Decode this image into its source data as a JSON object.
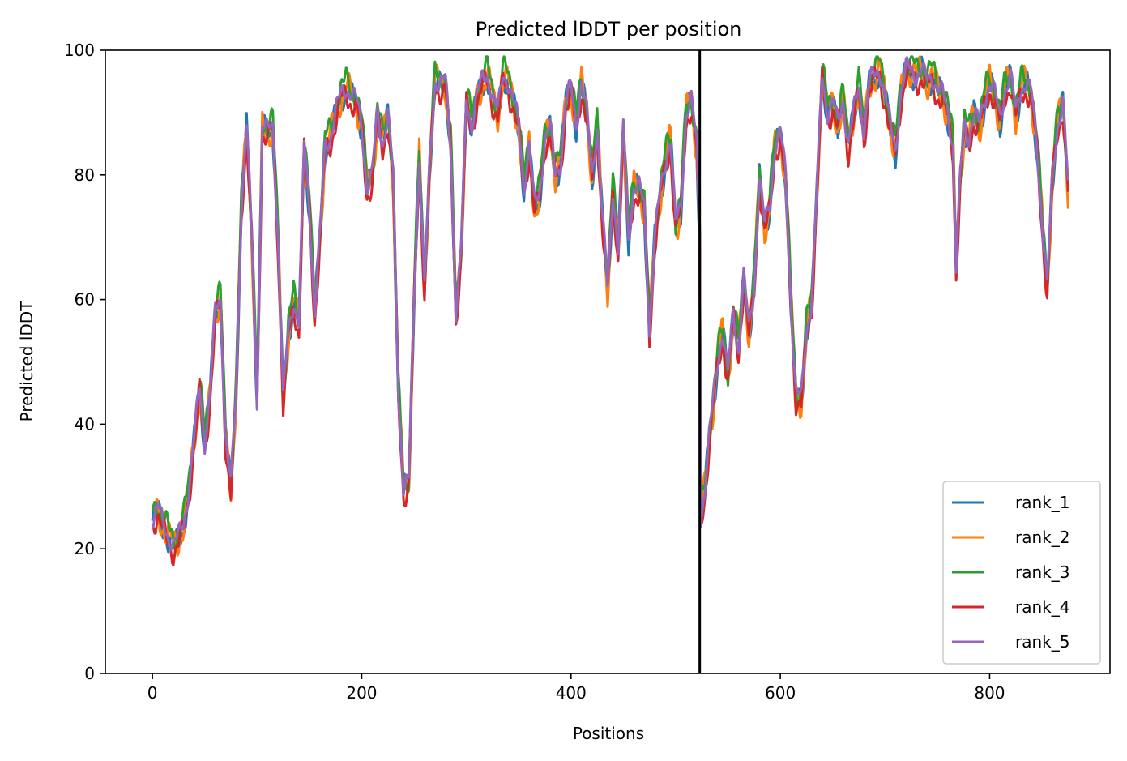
{
  "chart_data": {
    "type": "line",
    "title": "Predicted lDDT per position",
    "xlabel": "Positions",
    "ylabel": "Predicted lDDT",
    "xlim": [
      -45,
      915
    ],
    "ylim": [
      0,
      100
    ],
    "xticks": [
      0,
      200,
      400,
      600,
      800
    ],
    "yticks": [
      0,
      20,
      40,
      60,
      80,
      100
    ],
    "grid": false,
    "legend_position": "lower-right",
    "divider_x": 523,
    "x_max": 875,
    "colors": {
      "rank_1": "#1f77b4",
      "rank_2": "#ff7f0e",
      "rank_3": "#2ca02c",
      "rank_4": "#d62728",
      "rank_5": "#9467bd",
      "divider": "#000000"
    },
    "baseline_points": [
      [
        0,
        25
      ],
      [
        5,
        27
      ],
      [
        10,
        24
      ],
      [
        15,
        22
      ],
      [
        20,
        21
      ],
      [
        25,
        22
      ],
      [
        30,
        24
      ],
      [
        35,
        30
      ],
      [
        40,
        38
      ],
      [
        45,
        46
      ],
      [
        50,
        37
      ],
      [
        55,
        45
      ],
      [
        60,
        58
      ],
      [
        65,
        60
      ],
      [
        70,
        38
      ],
      [
        75,
        30
      ],
      [
        80,
        45
      ],
      [
        85,
        75
      ],
      [
        90,
        88
      ],
      [
        95,
        70
      ],
      [
        100,
        44
      ],
      [
        105,
        88
      ],
      [
        110,
        87
      ],
      [
        115,
        88
      ],
      [
        120,
        70
      ],
      [
        125,
        44
      ],
      [
        130,
        55
      ],
      [
        135,
        60
      ],
      [
        140,
        56
      ],
      [
        145,
        85
      ],
      [
        150,
        75
      ],
      [
        155,
        58
      ],
      [
        160,
        70
      ],
      [
        165,
        85
      ],
      [
        170,
        86
      ],
      [
        175,
        90
      ],
      [
        180,
        93
      ],
      [
        185,
        94
      ],
      [
        190,
        93
      ],
      [
        195,
        92
      ],
      [
        200,
        88
      ],
      [
        205,
        78
      ],
      [
        210,
        80
      ],
      [
        215,
        90
      ],
      [
        220,
        85
      ],
      [
        225,
        90
      ],
      [
        230,
        80
      ],
      [
        235,
        45
      ],
      [
        240,
        30
      ],
      [
        245,
        31
      ],
      [
        250,
        60
      ],
      [
        255,
        83
      ],
      [
        260,
        62
      ],
      [
        265,
        82
      ],
      [
        270,
        95
      ],
      [
        275,
        95
      ],
      [
        280,
        95
      ],
      [
        285,
        85
      ],
      [
        290,
        58
      ],
      [
        295,
        68
      ],
      [
        300,
        92
      ],
      [
        305,
        88
      ],
      [
        310,
        93
      ],
      [
        315,
        95
      ],
      [
        320,
        96
      ],
      [
        325,
        93
      ],
      [
        330,
        90
      ],
      [
        335,
        96
      ],
      [
        340,
        95
      ],
      [
        345,
        92
      ],
      [
        350,
        88
      ],
      [
        355,
        78
      ],
      [
        360,
        85
      ],
      [
        365,
        75
      ],
      [
        370,
        77
      ],
      [
        375,
        86
      ],
      [
        380,
        88
      ],
      [
        385,
        80
      ],
      [
        390,
        82
      ],
      [
        395,
        92
      ],
      [
        400,
        94
      ],
      [
        405,
        88
      ],
      [
        410,
        95
      ],
      [
        415,
        90
      ],
      [
        420,
        80
      ],
      [
        425,
        88
      ],
      [
        430,
        73
      ],
      [
        435,
        62
      ],
      [
        440,
        78
      ],
      [
        445,
        68
      ],
      [
        450,
        88
      ],
      [
        455,
        70
      ],
      [
        460,
        78
      ],
      [
        465,
        78
      ],
      [
        470,
        75
      ],
      [
        475,
        55
      ],
      [
        480,
        70
      ],
      [
        485,
        77
      ],
      [
        490,
        82
      ],
      [
        495,
        86
      ],
      [
        500,
        72
      ],
      [
        505,
        75
      ],
      [
        510,
        90
      ],
      [
        515,
        92
      ],
      [
        520,
        85
      ],
      [
        523,
        70
      ],
      [
        524,
        25
      ],
      [
        528,
        30
      ],
      [
        532,
        38
      ],
      [
        536,
        44
      ],
      [
        540,
        50
      ],
      [
        545,
        55
      ],
      [
        550,
        48
      ],
      [
        555,
        58
      ],
      [
        560,
        52
      ],
      [
        565,
        64
      ],
      [
        570,
        55
      ],
      [
        575,
        62
      ],
      [
        580,
        80
      ],
      [
        585,
        72
      ],
      [
        590,
        75
      ],
      [
        595,
        85
      ],
      [
        600,
        87
      ],
      [
        605,
        80
      ],
      [
        610,
        60
      ],
      [
        615,
        45
      ],
      [
        620,
        44
      ],
      [
        625,
        55
      ],
      [
        630,
        60
      ],
      [
        635,
        78
      ],
      [
        640,
        96
      ],
      [
        645,
        90
      ],
      [
        650,
        92
      ],
      [
        655,
        88
      ],
      [
        660,
        92
      ],
      [
        665,
        85
      ],
      [
        670,
        90
      ],
      [
        675,
        94
      ],
      [
        680,
        87
      ],
      [
        685,
        95
      ],
      [
        690,
        96
      ],
      [
        695,
        97
      ],
      [
        700,
        93
      ],
      [
        705,
        88
      ],
      [
        710,
        84
      ],
      [
        715,
        93
      ],
      [
        720,
        97
      ],
      [
        725,
        97
      ],
      [
        730,
        96
      ],
      [
        735,
        97
      ],
      [
        740,
        95
      ],
      [
        745,
        96
      ],
      [
        750,
        94
      ],
      [
        755,
        93
      ],
      [
        760,
        90
      ],
      [
        765,
        85
      ],
      [
        768,
        65
      ],
      [
        772,
        80
      ],
      [
        776,
        88
      ],
      [
        780,
        86
      ],
      [
        785,
        90
      ],
      [
        790,
        88
      ],
      [
        795,
        92
      ],
      [
        800,
        95
      ],
      [
        805,
        93
      ],
      [
        810,
        89
      ],
      [
        815,
        94
      ],
      [
        820,
        96
      ],
      [
        825,
        90
      ],
      [
        830,
        94
      ],
      [
        835,
        95
      ],
      [
        840,
        93
      ],
      [
        845,
        85
      ],
      [
        850,
        73
      ],
      [
        855,
        62
      ],
      [
        860,
        80
      ],
      [
        865,
        88
      ],
      [
        870,
        92
      ],
      [
        875,
        78
      ]
    ],
    "series": [
      {
        "name": "rank_1",
        "offset": -0.5,
        "amp": 1.6,
        "phase": 0.0
      },
      {
        "name": "rank_2",
        "offset": -0.3,
        "amp": 2.0,
        "phase": 1.3
      },
      {
        "name": "rank_3",
        "offset": 0.9,
        "amp": 1.7,
        "phase": 2.5
      },
      {
        "name": "rank_4",
        "offset": -1.2,
        "amp": 1.6,
        "phase": 3.7
      },
      {
        "name": "rank_5",
        "offset": 0.0,
        "amp": 1.2,
        "phase": 4.9
      }
    ]
  }
}
